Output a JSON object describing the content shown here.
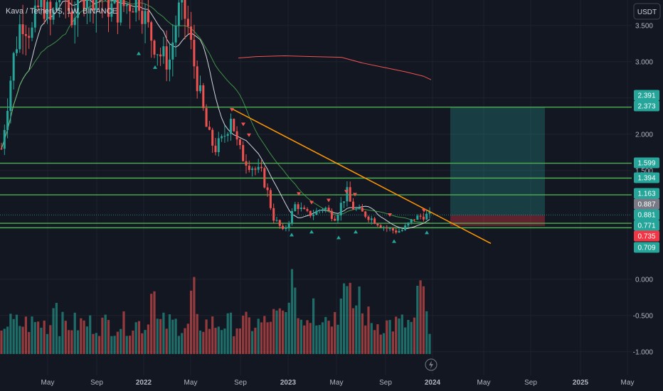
{
  "header": {
    "symbol_label": "Kava / TetherUS, 1W, BINANCE",
    "currency_badge": "USDT"
  },
  "chart_data": {
    "type": "candlestick",
    "x_ticks": [
      "May",
      "Sep",
      "2022",
      "May",
      "Sep",
      "2023",
      "May",
      "Sep",
      "2024",
      "May",
      "Sep",
      "2025",
      "May"
    ],
    "y_ticks": [
      "3.500",
      "3.000",
      "2.500",
      "2.000",
      "1.500",
      "0.000",
      "-0.500",
      "-1.000"
    ],
    "y_range": [
      -1.2,
      3.8
    ],
    "price_tags": [
      {
        "value": "2.391",
        "color": "#26a69a"
      },
      {
        "value": "2.373",
        "color": "#26a69a"
      },
      {
        "value": "1.599",
        "color": "#26a69a"
      },
      {
        "value": "1.394",
        "color": "#26a69a"
      },
      {
        "value": "1.163",
        "color": "#26a69a"
      },
      {
        "value": "0.887",
        "color": "#787b86"
      },
      {
        "value": "0.881",
        "color": "#26a69a"
      },
      {
        "value": "0.771",
        "color": "#26a69a"
      },
      {
        "value": "0.735",
        "color": "#f23645"
      },
      {
        "value": "0.709",
        "color": "#26a69a"
      }
    ],
    "horizontal_levels": [
      2.373,
      1.599,
      1.394,
      1.163,
      0.771,
      0.709
    ],
    "current_price": 0.887,
    "trendline": {
      "from": {
        "x": "2022-08",
        "y": 2.35
      },
      "to": {
        "x": "2024-07",
        "y": 0.63
      }
    },
    "position_tool": {
      "entry": 0.881,
      "target": 2.373,
      "stop": 0.735
    },
    "colors": {
      "up": "#26a69a",
      "down": "#ef5350",
      "levels": "#4caf50",
      "trendline": "#ff9800",
      "ma_fast": "#d1d4dc",
      "ma_slow": "#4caf50",
      "ma_long": "#ef5350",
      "background": "#131722",
      "grid": "#1e222d"
    }
  }
}
